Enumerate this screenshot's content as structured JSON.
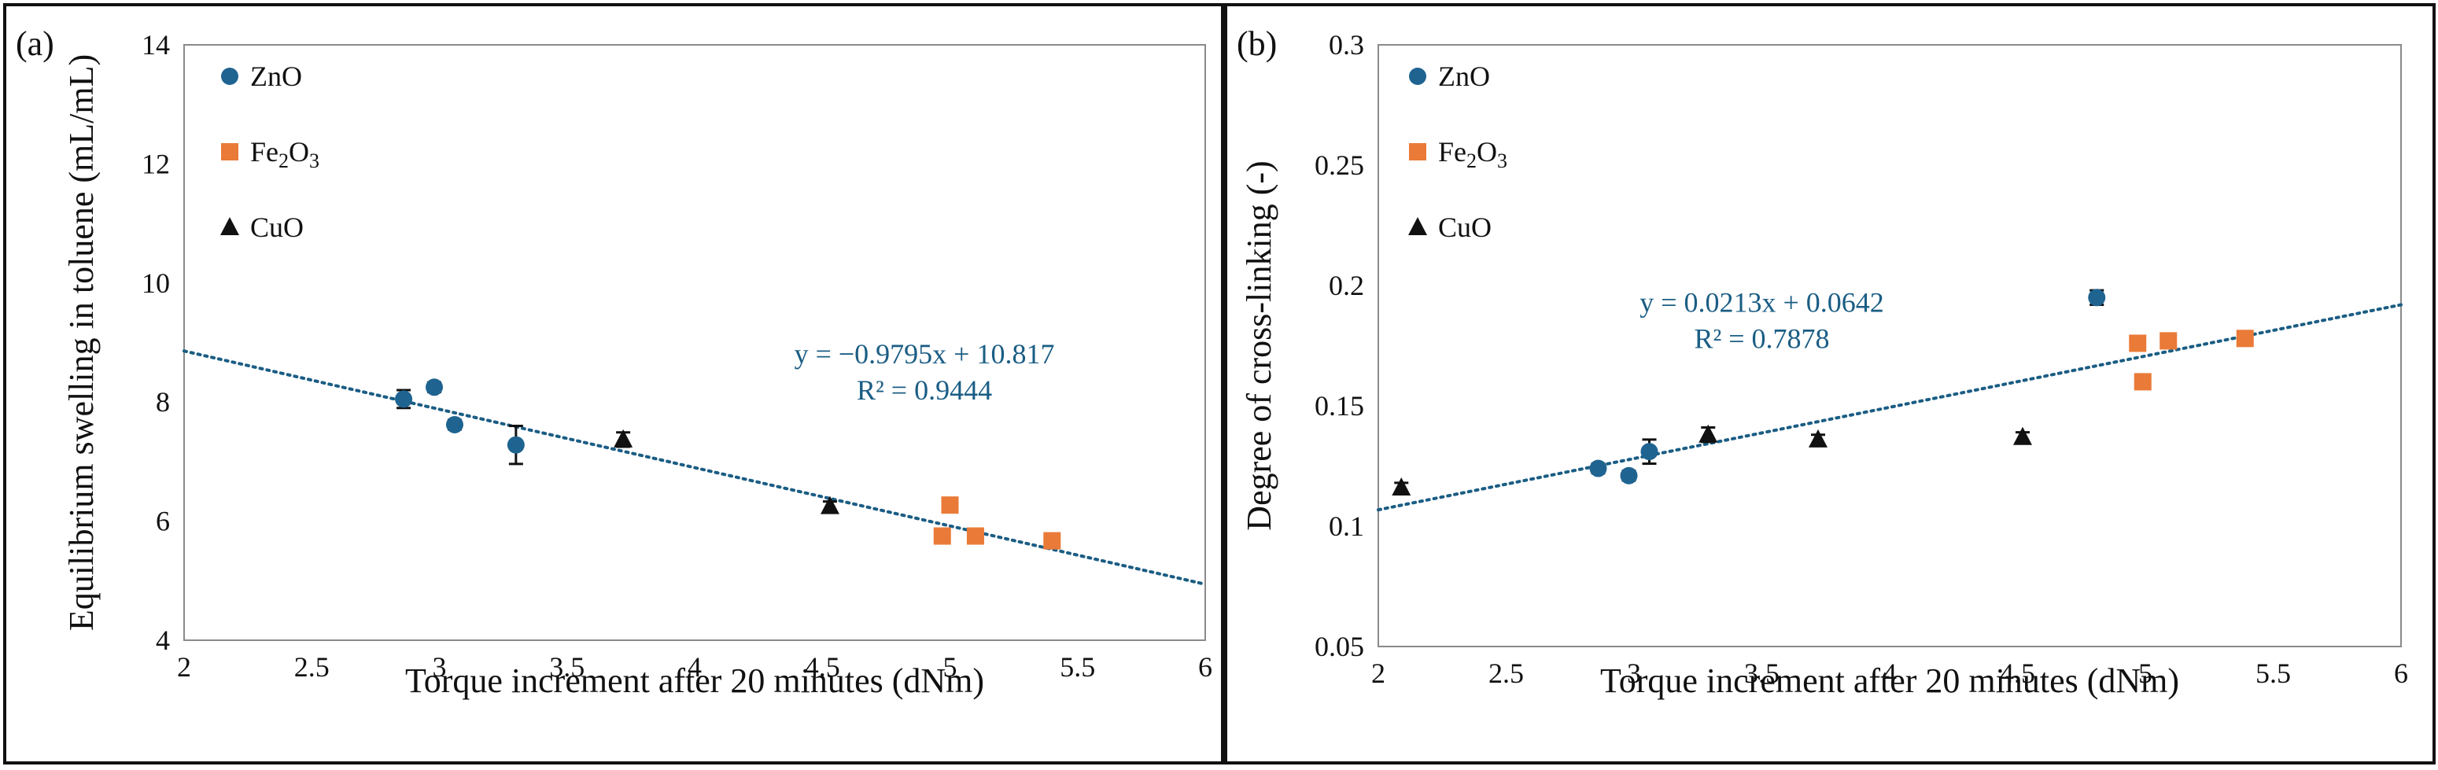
{
  "figure_title": "",
  "chart_data": [
    {
      "panel": "(a)",
      "type": "scatter",
      "title": "",
      "xlabel": "Torque increment after 20 minutes (dNm)",
      "ylabel": "Equilibrium swelling in toluene (mL/mL)",
      "xlim": [
        2,
        6
      ],
      "ylim": [
        4,
        14
      ],
      "xticks": [
        "2",
        "2.5",
        "3",
        "3.5",
        "4",
        "4.5",
        "5",
        "5.5",
        "6"
      ],
      "yticks": [
        "4",
        "6",
        "8",
        "10",
        "12",
        "14"
      ],
      "legend_position": "top-left",
      "series": [
        {
          "name": "ZnO",
          "marker": "circle",
          "color": "#1f6391",
          "points": [
            {
              "x": 2.86,
              "y": 8.05,
              "err": 0.15
            },
            {
              "x": 2.98,
              "y": 8.25,
              "err": 0.08
            },
            {
              "x": 3.06,
              "y": 7.62,
              "err": 0.08
            },
            {
              "x": 3.3,
              "y": 7.28,
              "err": 0.32
            }
          ]
        },
        {
          "name": "Fe2O3",
          "label_main": "Fe",
          "sub1": "2",
          "mid": "O",
          "sub2": "3",
          "marker": "square",
          "color": "#ea7a37",
          "points": [
            {
              "x": 4.97,
              "y": 5.75,
              "err": 0
            },
            {
              "x": 5.0,
              "y": 6.27,
              "err": 0
            },
            {
              "x": 5.1,
              "y": 5.75,
              "err": 0
            },
            {
              "x": 5.4,
              "y": 5.67,
              "err": 0
            }
          ]
        },
        {
          "name": "CuO",
          "marker": "triangle",
          "color": "#111111",
          "points": [
            {
              "x": 3.72,
              "y": 7.37,
              "err": 0.12
            },
            {
              "x": 4.53,
              "y": 6.25,
              "err": 0.08
            }
          ]
        }
      ],
      "trendline": {
        "slope": -0.9795,
        "intercept": 10.817,
        "x_start": 2,
        "x_end": 6,
        "color": "#1a5d84"
      },
      "equation": "y = −0.9795x + 10.817",
      "r_squared": "R² = 0.9444",
      "equation_anchor": [
        4.9,
        8.65
      ]
    },
    {
      "panel": "(b)",
      "type": "scatter",
      "title": "",
      "xlabel": "Torque increment after 20 minutes (dNm)",
      "ylabel": "Degree of cross-linking (-)",
      "xlim": [
        2,
        6
      ],
      "ylim": [
        0.05,
        0.3
      ],
      "xticks": [
        "2",
        "2.5",
        "3",
        "3.5",
        "4",
        "4.5",
        "5",
        "5.5",
        "6"
      ],
      "yticks": [
        "0.05",
        "0.1",
        "0.15",
        "0.2",
        "0.25",
        "0.3"
      ],
      "legend_position": "top-left",
      "series": [
        {
          "name": "ZnO",
          "marker": "circle",
          "color": "#1f6391",
          "points": [
            {
              "x": 2.86,
              "y": 0.124,
              "err": 0.002
            },
            {
              "x": 2.98,
              "y": 0.121,
              "err": 0.002
            },
            {
              "x": 3.06,
              "y": 0.131,
              "err": 0.005
            },
            {
              "x": 4.81,
              "y": 0.195,
              "err": 0.003
            }
          ]
        },
        {
          "name": "Fe2O3",
          "label_main": "Fe",
          "sub1": "2",
          "mid": "O",
          "sub2": "3",
          "marker": "square",
          "color": "#ea7a37",
          "points": [
            {
              "x": 4.97,
              "y": 0.176,
              "err": 0
            },
            {
              "x": 4.99,
              "y": 0.16,
              "err": 0
            },
            {
              "x": 5.09,
              "y": 0.177,
              "err": 0
            },
            {
              "x": 5.39,
              "y": 0.178,
              "err": 0
            }
          ]
        },
        {
          "name": "CuO",
          "marker": "triangle",
          "color": "#111111",
          "points": [
            {
              "x": 2.09,
              "y": 0.116,
              "err": 0.002
            },
            {
              "x": 3.29,
              "y": 0.138,
              "err": 0.003
            },
            {
              "x": 3.72,
              "y": 0.136,
              "err": 0.002
            },
            {
              "x": 4.52,
              "y": 0.137,
              "err": 0.002
            }
          ]
        }
      ],
      "trendline": {
        "slope": 0.0213,
        "intercept": 0.0642,
        "x_start": 2,
        "x_end": 6,
        "color": "#1a5d84"
      },
      "equation": "y = 0.0213x + 0.0642",
      "r_squared": "R² = 0.7878",
      "equation_anchor": [
        3.5,
        0.189
      ]
    }
  ]
}
